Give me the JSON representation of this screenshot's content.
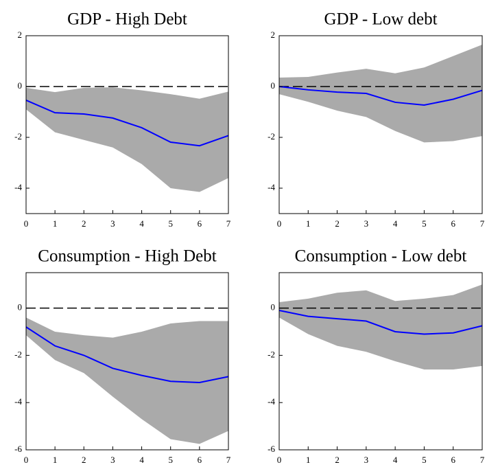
{
  "chart_data": [
    {
      "type": "line",
      "title": "GDP - High Debt",
      "x": [
        0,
        1,
        2,
        3,
        4,
        5,
        6,
        7
      ],
      "series": [
        {
          "color": "#0000ff",
          "values": [
            -0.54,
            -1.03,
            -1.08,
            -1.24,
            -1.62,
            -2.19,
            -2.33,
            -1.93
          ]
        }
      ],
      "band": {
        "color": "#aaaaaa",
        "upper": [
          -0.05,
          -0.22,
          -0.05,
          -0.03,
          -0.15,
          -0.3,
          -0.48,
          -0.2
        ],
        "lower": [
          -0.9,
          -1.8,
          -2.1,
          -2.4,
          -3.05,
          -4.0,
          -4.15,
          -3.6
        ]
      },
      "reference_line": 0,
      "xlim": [
        0,
        7
      ],
      "ylim": [
        -5,
        2
      ],
      "xticks": [
        0,
        1,
        2,
        3,
        4,
        5,
        6,
        7
      ],
      "yticks": [
        2,
        0,
        -2,
        -4
      ]
    },
    {
      "type": "line",
      "title": "GDP - Low debt",
      "x": [
        0,
        1,
        2,
        3,
        4,
        5,
        6,
        7
      ],
      "series": [
        {
          "color": "#0000ff",
          "values": [
            0,
            -0.13,
            -0.22,
            -0.27,
            -0.62,
            -0.73,
            -0.5,
            -0.15
          ]
        }
      ],
      "band": {
        "color": "#aaaaaa",
        "upper": [
          0.35,
          0.38,
          0.55,
          0.7,
          0.52,
          0.75,
          1.2,
          1.65
        ],
        "lower": [
          -0.3,
          -0.6,
          -0.95,
          -1.2,
          -1.75,
          -2.2,
          -2.15,
          -1.95
        ]
      },
      "reference_line": 0,
      "xlim": [
        0,
        7
      ],
      "ylim": [
        -5,
        2
      ],
      "xticks": [
        0,
        1,
        2,
        3,
        4,
        5,
        6,
        7
      ],
      "yticks": [
        2,
        0,
        -2,
        -4
      ]
    },
    {
      "type": "line",
      "title": "Consumption - High Debt",
      "x": [
        0,
        1,
        2,
        3,
        4,
        5,
        6,
        7
      ],
      "series": [
        {
          "color": "#0000ff",
          "values": [
            -0.8,
            -1.6,
            -2.0,
            -2.55,
            -2.85,
            -3.1,
            -3.15,
            -2.9
          ]
        }
      ],
      "band": {
        "color": "#aaaaaa",
        "upper": [
          -0.4,
          -1.0,
          -1.15,
          -1.25,
          -1.0,
          -0.65,
          -0.55,
          -0.55
        ],
        "lower": [
          -1.15,
          -2.2,
          -2.75,
          -3.75,
          -4.7,
          -5.55,
          -5.75,
          -5.2
        ]
      },
      "reference_line": 0,
      "xlim": [
        0,
        7
      ],
      "ylim": [
        -6,
        1.5
      ],
      "xticks": [
        0,
        1,
        2,
        3,
        4,
        5,
        6,
        7
      ],
      "yticks": [
        0,
        -2,
        -4,
        -6
      ]
    },
    {
      "type": "line",
      "title": "Consumption - Low debt",
      "x": [
        0,
        1,
        2,
        3,
        4,
        5,
        6,
        7
      ],
      "series": [
        {
          "color": "#0000ff",
          "values": [
            -0.1,
            -0.35,
            -0.45,
            -0.55,
            -1.0,
            -1.1,
            -1.05,
            -0.75
          ]
        }
      ],
      "band": {
        "color": "#aaaaaa",
        "upper": [
          0.25,
          0.4,
          0.65,
          0.75,
          0.3,
          0.4,
          0.55,
          1.0
        ],
        "lower": [
          -0.4,
          -1.1,
          -1.6,
          -1.85,
          -2.25,
          -2.6,
          -2.6,
          -2.45
        ]
      },
      "reference_line": 0,
      "xlim": [
        0,
        7
      ],
      "ylim": [
        -6,
        1.5
      ],
      "xticks": [
        0,
        1,
        2,
        3,
        4,
        5,
        6,
        7
      ],
      "yticks": [
        0,
        -2,
        -4,
        -6
      ]
    }
  ]
}
